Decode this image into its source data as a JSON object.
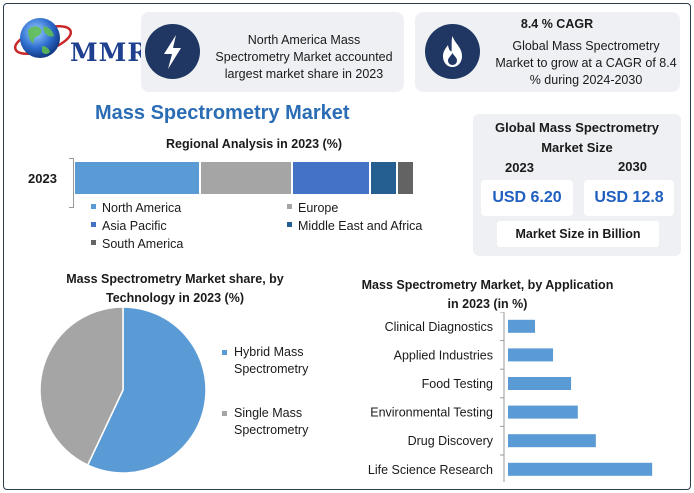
{
  "brand": {
    "logo_text": "MMR"
  },
  "info_cards": {
    "north_america": {
      "text": "North America Mass Spectrometry Market accounted largest market share in 2023",
      "icon": "lightning-icon"
    },
    "cagr": {
      "title": "8.4 % CAGR",
      "text": "Global Mass Spectrometry Market to grow at a CAGR of 8.4 % during 2024-2030",
      "icon": "flame-icon"
    }
  },
  "main_title": "Mass Spectrometry Market",
  "market_size": {
    "title": "Global Mass Spectrometry Market Size",
    "year_1": "2023",
    "year_2": "2030",
    "value_1": "USD 6.20",
    "value_2": "USD 12.8",
    "unit_note": "Market Size in Billion"
  },
  "colors": {
    "north_america": "#5b9bd5",
    "europe": "#a5a5a5",
    "asia_pacific": "#4472c4",
    "middle_east_africa": "#255e91",
    "south_america": "#636363",
    "pie_hybrid": "#5b9bd5",
    "pie_single": "#a5a5a5",
    "app_bar": "#5b9bd5",
    "accent": "#2a6db5"
  },
  "chart_data": [
    {
      "type": "bar",
      "orientation": "horizontal-stacked",
      "title": "Regional Analysis in 2023 (%)",
      "categories": [
        "2023"
      ],
      "series": [
        {
          "name": "North America",
          "values": [
            37
          ]
        },
        {
          "name": "Europe",
          "values": [
            27
          ]
        },
        {
          "name": "Asia Pacific",
          "values": [
            23
          ]
        },
        {
          "name": "Middle East and Africa",
          "values": [
            8
          ]
        },
        {
          "name": "South America",
          "values": [
            5
          ]
        }
      ],
      "legend_position": "bottom"
    },
    {
      "type": "pie",
      "title": "Mass Spectrometry Market share, by Technology in 2023  (%)",
      "labels": [
        "Hybrid Mass Spectrometry",
        "Single Mass Spectrometry"
      ],
      "values": [
        57,
        43
      ],
      "legend_position": "right"
    },
    {
      "type": "bar",
      "orientation": "horizontal",
      "title": "Mass Spectrometry Market, by Application in 2023 (in %)",
      "categories": [
        "Clinical Diagnostics",
        "Applied Industries",
        "Food Testing",
        "Environmental Testing",
        "Drug Discovery",
        "Life Science Research"
      ],
      "values": [
        6,
        10,
        14,
        15.5,
        19.5,
        32
      ],
      "xlim": [
        0,
        40
      ]
    }
  ]
}
